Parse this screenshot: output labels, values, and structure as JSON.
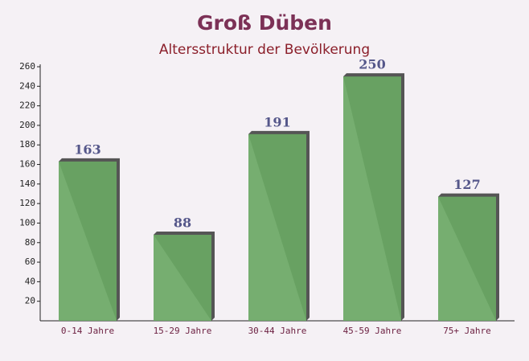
{
  "chart_data": {
    "type": "bar",
    "title": "Groß Düben",
    "subtitle": "Altersstruktur der Bevölkerung",
    "categories": [
      "0-14 Jahre",
      "15-29 Jahre",
      "30-44 Jahre",
      "45-59 Jahre",
      "75+ Jahre"
    ],
    "values": [
      163,
      88,
      191,
      250,
      127
    ],
    "color": "#6aa864",
    "ylim": [
      0,
      260
    ],
    "yticks": [
      20,
      40,
      60,
      80,
      100,
      120,
      140,
      160,
      180,
      200,
      220,
      240,
      260
    ],
    "grid": false
  }
}
